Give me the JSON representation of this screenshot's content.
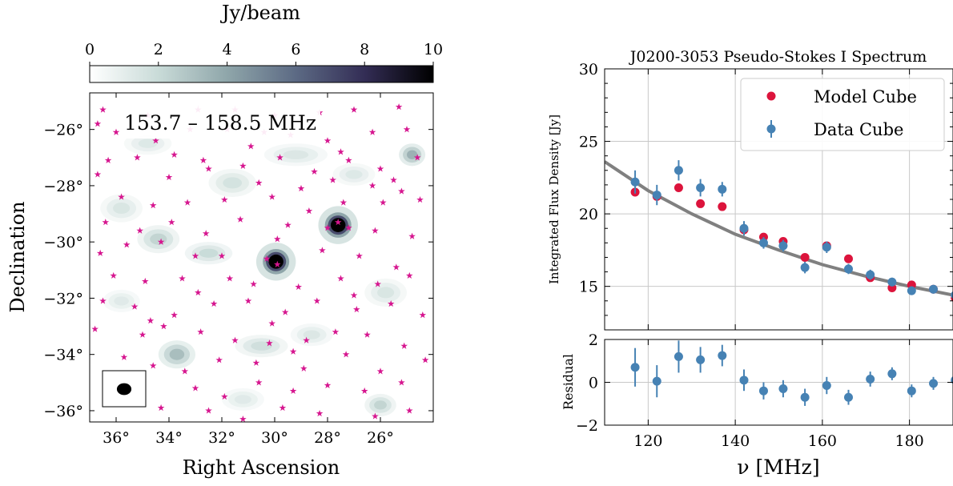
{
  "chart_data": [
    {
      "type": "heatmap",
      "colorbar": {
        "label": "Jy/beam",
        "range": [
          0,
          10
        ],
        "ticks": [
          "0",
          "2",
          "4",
          "6",
          "8",
          "10"
        ],
        "colors": [
          "#ffffff",
          "#c9dbd8",
          "#8fa6aa",
          "#5c6a84",
          "#332d55",
          "#000000"
        ]
      },
      "annotation": "153.7 – 158.5 MHz",
      "xlabel": "Right Ascension",
      "ylabel": "Declination",
      "xlim": [
        37.0,
        24.0
      ],
      "ylim": [
        -36.4,
        -24.7
      ],
      "x_ticks": [
        {
          "v": 36,
          "t": "36°"
        },
        {
          "v": 34,
          "t": "34°"
        },
        {
          "v": 32,
          "t": "32°"
        },
        {
          "v": 30,
          "t": "30°"
        },
        {
          "v": 28,
          "t": "28°"
        },
        {
          "v": 26,
          "t": "26°"
        }
      ],
      "y_ticks": [
        {
          "v": -26,
          "t": "−26°"
        },
        {
          "v": -28,
          "t": "−28°"
        },
        {
          "v": -30,
          "t": "−30°"
        },
        {
          "v": -32,
          "t": "−32°"
        },
        {
          "v": -34,
          "t": "−34°"
        },
        {
          "v": -36,
          "t": "−36°"
        }
      ],
      "bright_sources": [
        {
          "ra": 27.6,
          "dec": -29.4,
          "peak": 10
        },
        {
          "ra": 29.95,
          "dec": -30.7,
          "peak": 10
        }
      ],
      "faint_emission": [
        {
          "ra": 24.8,
          "dec": -26.9,
          "peak": 4,
          "rx": 0.5,
          "ry": 0.4
        },
        {
          "ra": 33.7,
          "dec": -34.0,
          "peak": 3.5,
          "rx": 0.7,
          "ry": 0.5
        },
        {
          "ra": 34.4,
          "dec": -29.9,
          "peak": 2.5,
          "rx": 0.8,
          "ry": 0.5
        },
        {
          "ra": 26.0,
          "dec": -35.8,
          "peak": 2.5,
          "rx": 0.6,
          "ry": 0.4
        },
        {
          "ra": 32.5,
          "dec": -30.4,
          "peak": 2.2,
          "rx": 0.9,
          "ry": 0.4
        },
        {
          "ra": 30.5,
          "dec": -33.7,
          "peak": 2.0,
          "rx": 1.0,
          "ry": 0.4
        },
        {
          "ra": 31.6,
          "dec": -27.9,
          "peak": 1.8,
          "rx": 0.9,
          "ry": 0.5
        },
        {
          "ra": 35.8,
          "dec": -28.8,
          "peak": 1.6,
          "rx": 0.8,
          "ry": 0.5
        },
        {
          "ra": 25.8,
          "dec": -31.8,
          "peak": 1.6,
          "rx": 0.8,
          "ry": 0.5
        },
        {
          "ra": 28.6,
          "dec": -33.3,
          "peak": 1.5,
          "rx": 0.8,
          "ry": 0.4
        },
        {
          "ra": 34.8,
          "dec": -26.5,
          "peak": 1.4,
          "rx": 0.9,
          "ry": 0.4
        },
        {
          "ra": 29.2,
          "dec": -26.9,
          "peak": 1.5,
          "rx": 1.2,
          "ry": 0.4
        },
        {
          "ra": 27.0,
          "dec": -27.6,
          "peak": 1.4,
          "rx": 0.8,
          "ry": 0.4
        },
        {
          "ra": 31.2,
          "dec": -35.6,
          "peak": 1.3,
          "rx": 0.8,
          "ry": 0.4
        },
        {
          "ra": 35.8,
          "dec": -32.1,
          "peak": 1.3,
          "rx": 0.7,
          "ry": 0.4
        }
      ],
      "catalogue_stars": [
        [
          36.5,
          -25.3
        ],
        [
          34.8,
          -25.5
        ],
        [
          32.9,
          -25.3
        ],
        [
          31.5,
          -25.3
        ],
        [
          30.0,
          -25.5
        ],
        [
          28.3,
          -25.4
        ],
        [
          27.0,
          -25.3
        ],
        [
          25.3,
          -25.2
        ],
        [
          36.0,
          -26.1
        ],
        [
          34.5,
          -26.4
        ],
        [
          33.2,
          -26.0
        ],
        [
          31.8,
          -26.0
        ],
        [
          30.4,
          -26.1
        ],
        [
          29.4,
          -26.2
        ],
        [
          28.0,
          -26.4
        ],
        [
          26.3,
          -26.1
        ],
        [
          25.0,
          -26.0
        ],
        [
          36.3,
          -27.1
        ],
        [
          35.2,
          -27.0
        ],
        [
          32.7,
          -27.1
        ],
        [
          31.2,
          -27.3
        ],
        [
          29.8,
          -27.0
        ],
        [
          28.5,
          -27.5
        ],
        [
          27.2,
          -27.1
        ],
        [
          26.0,
          -27.4
        ],
        [
          24.6,
          -27.0
        ],
        [
          36.7,
          -27.6
        ],
        [
          34.0,
          -27.7
        ],
        [
          32.5,
          -27.4
        ],
        [
          30.6,
          -27.9
        ],
        [
          29.0,
          -28.1
        ],
        [
          27.8,
          -27.8
        ],
        [
          26.3,
          -28.0
        ],
        [
          25.2,
          -28.2
        ],
        [
          35.8,
          -28.4
        ],
        [
          34.6,
          -28.7
        ],
        [
          33.3,
          -28.6
        ],
        [
          31.9,
          -28.5
        ],
        [
          30.1,
          -28.4
        ],
        [
          28.7,
          -28.9
        ],
        [
          27.4,
          -28.6
        ],
        [
          25.9,
          -28.6
        ],
        [
          24.5,
          -28.5
        ],
        [
          36.4,
          -29.3
        ],
        [
          35.1,
          -29.6
        ],
        [
          33.9,
          -29.3
        ],
        [
          32.6,
          -29.7
        ],
        [
          31.3,
          -29.2
        ],
        [
          29.5,
          -29.4
        ],
        [
          28.0,
          -29.5
        ],
        [
          27.6,
          -29.3
        ],
        [
          27.2,
          -29.5
        ],
        [
          26.2,
          -29.6
        ],
        [
          24.8,
          -29.8
        ],
        [
          36.6,
          -30.4
        ],
        [
          35.6,
          -30.1
        ],
        [
          34.3,
          -30.0
        ],
        [
          33.0,
          -30.5
        ],
        [
          32.0,
          -30.5
        ],
        [
          30.3,
          -30.6
        ],
        [
          29.9,
          -30.8
        ],
        [
          28.2,
          -30.3
        ],
        [
          26.8,
          -30.5
        ],
        [
          25.4,
          -30.9
        ],
        [
          36.1,
          -31.2
        ],
        [
          34.9,
          -31.4
        ],
        [
          33.5,
          -31.3
        ],
        [
          31.7,
          -31.3
        ],
        [
          30.8,
          -31.5
        ],
        [
          29.1,
          -31.6
        ],
        [
          27.5,
          -31.3
        ],
        [
          26.1,
          -31.5
        ],
        [
          24.9,
          -31.2
        ],
        [
          36.5,
          -32.1
        ],
        [
          35.3,
          -32.3
        ],
        [
          33.8,
          -32.6
        ],
        [
          32.3,
          -32.2
        ],
        [
          31.0,
          -32.1
        ],
        [
          29.6,
          -32.5
        ],
        [
          28.4,
          -32.1
        ],
        [
          26.9,
          -32.4
        ],
        [
          25.6,
          -32.2
        ],
        [
          24.4,
          -32.6
        ],
        [
          36.8,
          -33.1
        ],
        [
          35.0,
          -33.3
        ],
        [
          34.2,
          -33.0
        ],
        [
          32.8,
          -33.2
        ],
        [
          31.5,
          -33.5
        ],
        [
          30.2,
          -33.6
        ],
        [
          29.3,
          -33.9
        ],
        [
          27.7,
          -33.2
        ],
        [
          26.5,
          -33.3
        ],
        [
          25.1,
          -33.7
        ],
        [
          35.7,
          -34.1
        ],
        [
          34.6,
          -34.4
        ],
        [
          33.4,
          -34.6
        ],
        [
          32.1,
          -34.2
        ],
        [
          30.7,
          -34.3
        ],
        [
          28.9,
          -34.5
        ],
        [
          27.3,
          -34.0
        ],
        [
          26.0,
          -34.6
        ],
        [
          24.3,
          -34.2
        ],
        [
          35.2,
          -35.1
        ],
        [
          33.0,
          -35.2
        ],
        [
          31.9,
          -35.5
        ],
        [
          30.6,
          -35.0
        ],
        [
          29.3,
          -35.3
        ],
        [
          28.0,
          -35.1
        ],
        [
          26.6,
          -35.3
        ],
        [
          25.2,
          -35.0
        ],
        [
          34.3,
          -35.9
        ],
        [
          32.5,
          -36.0
        ],
        [
          31.2,
          -36.3
        ],
        [
          29.7,
          -35.9
        ],
        [
          28.3,
          -36.1
        ],
        [
          26.2,
          -36.2
        ],
        [
          24.9,
          -36.0
        ],
        [
          36.7,
          -25.8
        ],
        [
          33.8,
          -26.9
        ],
        [
          30.9,
          -26.6
        ],
        [
          27.5,
          -26.8
        ],
        [
          25.5,
          -27.8
        ],
        [
          29.9,
          -29.9
        ],
        [
          32.9,
          -31.8
        ],
        [
          28.8,
          -33.5
        ],
        [
          34.7,
          -32.8
        ],
        [
          35.9,
          -35.5
        ],
        [
          30.1,
          -32.9
        ],
        [
          27.0,
          -31.9
        ]
      ],
      "beam_inset": {
        "ra": 35.3,
        "dec": -35.25,
        "major_deg": 0.55,
        "minor_deg": 0.42
      }
    },
    {
      "type": "scatter",
      "title": "J0200-3053 Pseudo-Stokes I Spectrum",
      "xlabel": "ν [MHz]",
      "ylabel": "Integrated Flux Density [Jy]",
      "xlim": [
        110,
        190
      ],
      "ylim": [
        12,
        30
      ],
      "x_ticks": [
        "120",
        "140",
        "160",
        "180"
      ],
      "y_ticks": [
        "15",
        "20",
        "25",
        "30"
      ],
      "grid": true,
      "legend_position": "top-right",
      "series": [
        {
          "name": "Model Cube",
          "color": "#dc143c",
          "x": [
            117,
            122,
            127,
            132,
            137,
            142,
            146.5,
            151,
            156,
            161,
            166,
            171,
            176,
            180.5,
            185.5,
            190.5
          ],
          "values": [
            21.5,
            21.2,
            21.8,
            20.7,
            20.5,
            18.9,
            18.4,
            18.1,
            17.0,
            17.8,
            16.9,
            15.6,
            14.9,
            15.1,
            14.8,
            14.2
          ]
        },
        {
          "name": "Data Cube",
          "color": "#4682b4",
          "x": [
            117,
            122,
            127,
            132,
            137,
            142,
            146.5,
            151,
            156,
            161,
            166,
            171,
            176,
            180.5,
            185.5,
            190.5
          ],
          "values": [
            22.2,
            21.3,
            23.0,
            21.8,
            21.7,
            19.0,
            18.0,
            17.8,
            16.3,
            17.7,
            16.2,
            15.8,
            15.3,
            14.7,
            14.8,
            14.4
          ],
          "errors": [
            0.8,
            0.7,
            0.7,
            0.6,
            0.5,
            0.5,
            0.4,
            0.4,
            0.4,
            0.4,
            0.35,
            0.35,
            0.3,
            0.3,
            0.3,
            0.3
          ]
        },
        {
          "name": "",
          "type": "line",
          "color": "#808080",
          "x": [
            110,
            120,
            130,
            140,
            150,
            160,
            170,
            180,
            190
          ],
          "values": [
            23.6,
            21.6,
            20.0,
            18.6,
            17.5,
            16.5,
            15.7,
            15.0,
            14.4
          ]
        }
      ]
    },
    {
      "type": "scatter",
      "xlabel": "ν [MHz]",
      "ylabel": "Residual",
      "xlim": [
        110,
        190
      ],
      "ylim": [
        -2,
        2
      ],
      "x_ticks": [
        "120",
        "140",
        "160",
        "180"
      ],
      "y_ticks": [
        "−2",
        "0",
        "2"
      ],
      "grid": true,
      "series": [
        {
          "name": "",
          "color": "#4682b4",
          "x": [
            117,
            122,
            127,
            132,
            137,
            142,
            146.5,
            151,
            156,
            161,
            166,
            171,
            176,
            180.5,
            185.5,
            190.5
          ],
          "values": [
            0.7,
            0.05,
            1.2,
            1.05,
            1.25,
            0.1,
            -0.4,
            -0.3,
            -0.7,
            -0.15,
            -0.7,
            0.15,
            0.4,
            -0.4,
            -0.05,
            0.1
          ],
          "errors": [
            0.9,
            0.75,
            0.75,
            0.6,
            0.5,
            0.5,
            0.4,
            0.4,
            0.4,
            0.4,
            0.35,
            0.35,
            0.3,
            0.3,
            0.3,
            0.3
          ]
        }
      ]
    }
  ]
}
